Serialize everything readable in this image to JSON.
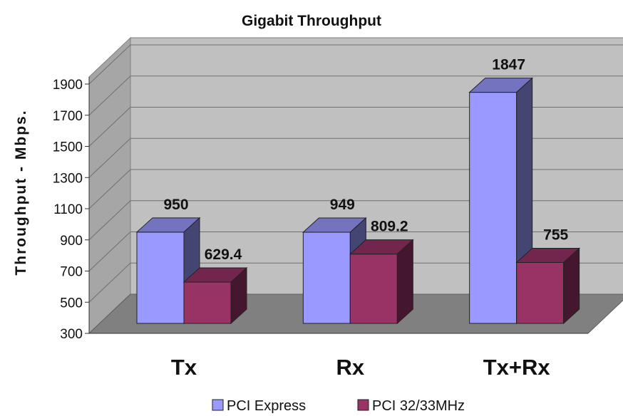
{
  "chart_data": {
    "type": "bar",
    "title": "Gigabit Throughput",
    "ylabel": "Throughput - Mbps.",
    "xlabel": "",
    "categories": [
      "Tx",
      "Rx",
      "Tx+Rx"
    ],
    "series": [
      {
        "name": "PCI Express",
        "values": [
          950,
          949,
          1847
        ],
        "labels": [
          "950",
          "949",
          "1847"
        ],
        "color": "#9999ff"
      },
      {
        "name": "PCI 32/33MHz",
        "values": [
          629.4,
          809.2,
          755
        ],
        "labels": [
          "629.4",
          "809.2",
          "755"
        ],
        "color": "#993366"
      }
    ],
    "ylim": [
      300,
      1900
    ],
    "yticks": [
      "300",
      "500",
      "700",
      "900",
      "1100",
      "1300",
      "1500",
      "1700",
      "1900"
    ],
    "grid": true,
    "legend": "bottom",
    "style": "3d-clustered-column",
    "wall_color": "#c0c0c0",
    "floor_color": "#808080"
  }
}
